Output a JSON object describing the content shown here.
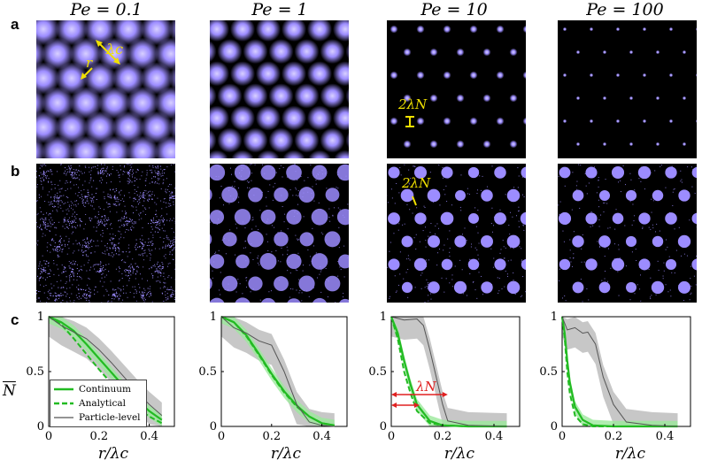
{
  "columns": [
    {
      "title": "Pe = 0.1"
    },
    {
      "title": "Pe = 1"
    },
    {
      "title": "Pe = 10"
    },
    {
      "title": "Pe = 100"
    }
  ],
  "row_labels": {
    "a": "a",
    "b": "b",
    "c": "c"
  },
  "annotations": {
    "lambda_c": "λc",
    "r": "r",
    "two_lambda_N": "2λN",
    "lambda_N": "λN"
  },
  "colors": {
    "spot": "#9c8cff",
    "continuum": "#22bb22",
    "particle": "#555555",
    "band_grey": "#bdbdbd",
    "band_green": "#9be89b",
    "arrow_yellow": "#f0e000",
    "arrow_red": "#e02020"
  },
  "axis": {
    "ylabel": "N",
    "xlabel": "r/λc",
    "yticks": [
      "0",
      "0.5",
      "1"
    ],
    "xticks": [
      "0",
      "0.2",
      "0.4"
    ]
  },
  "legend": {
    "continuum": "Continuum",
    "analytical": "Analytical",
    "particle": "Particle-level"
  },
  "chart_data": [
    {
      "type": "line",
      "title": "Pe = 0.1",
      "xlabel": "r/λc",
      "ylabel": "N",
      "xlim": [
        0,
        0.5
      ],
      "ylim": [
        0,
        1
      ],
      "series": [
        {
          "name": "Continuum",
          "x": [
            0,
            0.05,
            0.1,
            0.15,
            0.2,
            0.25,
            0.3,
            0.35,
            0.4,
            0.45
          ],
          "y": [
            1,
            0.95,
            0.87,
            0.75,
            0.62,
            0.49,
            0.36,
            0.24,
            0.14,
            0.06
          ]
        },
        {
          "name": "Analytical",
          "x": [
            0,
            0.05,
            0.1,
            0.15,
            0.2,
            0.25,
            0.3,
            0.35,
            0.4,
            0.45
          ],
          "y": [
            1,
            0.93,
            0.8,
            0.66,
            0.52,
            0.39,
            0.27,
            0.17,
            0.09,
            0.03
          ]
        },
        {
          "name": "Particle-level",
          "x": [
            0,
            0.05,
            0.1,
            0.15,
            0.2,
            0.25,
            0.3,
            0.35,
            0.4,
            0.45
          ],
          "y": [
            1,
            0.92,
            0.86,
            0.8,
            0.7,
            0.58,
            0.45,
            0.32,
            0.2,
            0.1
          ]
        }
      ]
    },
    {
      "type": "line",
      "title": "Pe = 1",
      "xlabel": "r/λc",
      "ylabel": "N",
      "xlim": [
        0,
        0.5
      ],
      "ylim": [
        0,
        1
      ],
      "series": [
        {
          "name": "Continuum",
          "x": [
            0,
            0.05,
            0.1,
            0.15,
            0.2,
            0.25,
            0.3,
            0.35,
            0.4,
            0.45
          ],
          "y": [
            1,
            0.95,
            0.83,
            0.66,
            0.48,
            0.32,
            0.19,
            0.09,
            0.03,
            0.01
          ]
        },
        {
          "name": "Analytical",
          "x": [
            0,
            0.05,
            0.1,
            0.15,
            0.2,
            0.25,
            0.3,
            0.35,
            0.4,
            0.45
          ],
          "y": [
            1,
            0.95,
            0.82,
            0.65,
            0.47,
            0.31,
            0.18,
            0.09,
            0.03,
            0.01
          ]
        },
        {
          "name": "Particle-level",
          "x": [
            0,
            0.05,
            0.1,
            0.15,
            0.2,
            0.25,
            0.3,
            0.35,
            0.4,
            0.45
          ],
          "y": [
            1,
            0.9,
            0.85,
            0.78,
            0.74,
            0.5,
            0.2,
            0.04,
            0.01,
            0
          ]
        }
      ]
    },
    {
      "type": "line",
      "title": "Pe = 10",
      "xlabel": "r/λc",
      "ylabel": "N",
      "xlim": [
        0,
        0.5
      ],
      "ylim": [
        0,
        1
      ],
      "series": [
        {
          "name": "Continuum",
          "x": [
            0,
            0.025,
            0.05,
            0.075,
            0.1,
            0.15,
            0.2,
            0.3,
            0.45
          ],
          "y": [
            1,
            0.85,
            0.6,
            0.38,
            0.2,
            0.05,
            0.01,
            0,
            0
          ]
        },
        {
          "name": "Analytical",
          "x": [
            0,
            0.025,
            0.05,
            0.075,
            0.1,
            0.15,
            0.2,
            0.3,
            0.45
          ],
          "y": [
            1,
            0.8,
            0.5,
            0.3,
            0.14,
            0.03,
            0.01,
            0,
            0
          ]
        },
        {
          "name": "Particle-level",
          "x": [
            0,
            0.05,
            0.1,
            0.125,
            0.15,
            0.175,
            0.2,
            0.22,
            0.3,
            0.45
          ],
          "y": [
            1,
            0.97,
            0.98,
            0.92,
            0.7,
            0.45,
            0.2,
            0.05,
            0.01,
            0
          ]
        }
      ]
    },
    {
      "type": "line",
      "title": "Pe = 100",
      "xlabel": "r/λc",
      "ylabel": "N",
      "xlim": [
        0,
        0.5
      ],
      "ylim": [
        0,
        1
      ],
      "series": [
        {
          "name": "Continuum",
          "x": [
            0,
            0.01,
            0.02,
            0.03,
            0.05,
            0.08,
            0.12,
            0.2,
            0.45
          ],
          "y": [
            1,
            0.85,
            0.6,
            0.4,
            0.18,
            0.06,
            0.01,
            0,
            0
          ]
        },
        {
          "name": "Analytical",
          "x": [
            0,
            0.01,
            0.02,
            0.03,
            0.05,
            0.08,
            0.12,
            0.2,
            0.45
          ],
          "y": [
            1,
            0.8,
            0.5,
            0.3,
            0.1,
            0.02,
            0,
            0,
            0
          ]
        },
        {
          "name": "Particle-level",
          "x": [
            0,
            0.02,
            0.05,
            0.08,
            0.1,
            0.13,
            0.16,
            0.2,
            0.25,
            0.35,
            0.45
          ],
          "y": [
            1,
            0.88,
            0.9,
            0.85,
            0.86,
            0.75,
            0.45,
            0.2,
            0.04,
            0.01,
            0
          ]
        }
      ]
    }
  ]
}
